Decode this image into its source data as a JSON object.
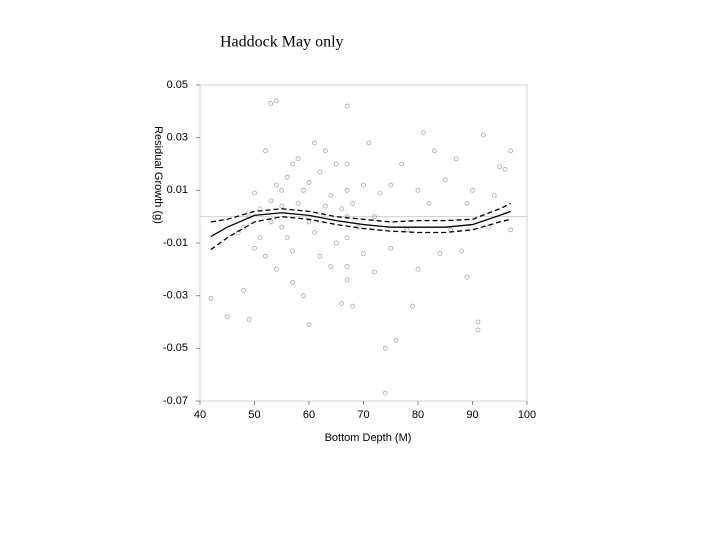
{
  "chart_data": {
    "type": "scatter",
    "title": "Haddock May only",
    "xlabel": "Bottom Depth (M)",
    "ylabel": "Residual Growth (g)",
    "xlim": [
      40,
      100
    ],
    "ylim": [
      -0.07,
      0.05
    ],
    "xticks": [
      40,
      50,
      60,
      70,
      80,
      90,
      100
    ],
    "yticks": [
      0.05,
      0.03,
      0.01,
      -0.01,
      -0.03,
      -0.05,
      -0.07
    ],
    "zero_line": true,
    "series": [
      {
        "kind": "points",
        "color": "#a8a8a8",
        "x": [
          42,
          45,
          47,
          48,
          48,
          49,
          49,
          50,
          50,
          51,
          51,
          52,
          52,
          53,
          53,
          53,
          54,
          54,
          54,
          55,
          55,
          55,
          56,
          56,
          57,
          57,
          57,
          58,
          58,
          59,
          59,
          60,
          60,
          60,
          61,
          61,
          62,
          62,
          63,
          63,
          64,
          64,
          65,
          65,
          66,
          66,
          67,
          67,
          67,
          67,
          67,
          67,
          67,
          68,
          68,
          69,
          70,
          70,
          71,
          72,
          72,
          73,
          74,
          74,
          75,
          75,
          76,
          77,
          78,
          79,
          80,
          80,
          81,
          82,
          83,
          84,
          85,
          86,
          87,
          88,
          89,
          89,
          90,
          91,
          91,
          92,
          93,
          94,
          95,
          96,
          97,
          97
        ],
        "values": [
          -0.031,
          -0.038,
          -0.006,
          -0.028,
          -0.004,
          0.0,
          -0.039,
          0.009,
          -0.012,
          -0.008,
          0.003,
          0.025,
          -0.015,
          0.043,
          0.006,
          -0.002,
          0.044,
          0.012,
          -0.02,
          0.01,
          0.004,
          -0.004,
          0.015,
          -0.008,
          0.02,
          -0.013,
          -0.025,
          0.005,
          0.022,
          -0.03,
          0.01,
          -0.002,
          0.013,
          -0.041,
          0.028,
          -0.006,
          0.017,
          -0.015,
          0.004,
          0.025,
          -0.019,
          0.008,
          -0.01,
          0.02,
          0.003,
          -0.033,
          0.042,
          0.02,
          0.01,
          0.0,
          -0.008,
          -0.019,
          -0.024,
          -0.034,
          0.005,
          -0.004,
          0.012,
          -0.014,
          0.028,
          0.0,
          -0.021,
          0.009,
          -0.067,
          -0.05,
          0.012,
          -0.012,
          -0.047,
          0.02,
          -0.005,
          -0.034,
          -0.02,
          0.01,
          0.032,
          0.005,
          0.025,
          -0.014,
          0.014,
          -0.005,
          0.022,
          -0.013,
          0.005,
          -0.023,
          0.01,
          -0.04,
          -0.043,
          0.031,
          -0.004,
          0.008,
          0.019,
          0.018,
          0.025,
          -0.005
        ]
      },
      {
        "kind": "line",
        "dashed": false,
        "color": "#000000",
        "x": [
          42,
          45,
          50,
          55,
          60,
          65,
          70,
          75,
          80,
          85,
          90,
          95,
          97
        ],
        "values": [
          -0.0075,
          -0.004,
          0.0005,
          0.0015,
          0.0005,
          -0.0015,
          -0.003,
          -0.004,
          -0.004,
          -0.004,
          -0.003,
          0.0005,
          0.002
        ]
      },
      {
        "kind": "line",
        "dashed": true,
        "color": "#000000",
        "x": [
          42,
          45,
          50,
          55,
          60,
          65,
          70,
          75,
          80,
          85,
          90,
          95,
          97
        ],
        "values": [
          -0.002,
          -0.001,
          0.002,
          0.003,
          0.002,
          0.0,
          -0.001,
          -0.002,
          -0.0015,
          -0.0015,
          -0.001,
          0.003,
          0.005
        ]
      },
      {
        "kind": "line",
        "dashed": true,
        "color": "#000000",
        "x": [
          42,
          45,
          50,
          55,
          60,
          65,
          70,
          75,
          80,
          85,
          90,
          95,
          97
        ],
        "values": [
          -0.0125,
          -0.008,
          -0.002,
          0.0,
          -0.001,
          -0.003,
          -0.0045,
          -0.0055,
          -0.006,
          -0.006,
          -0.005,
          -0.002,
          -0.001
        ]
      }
    ]
  }
}
